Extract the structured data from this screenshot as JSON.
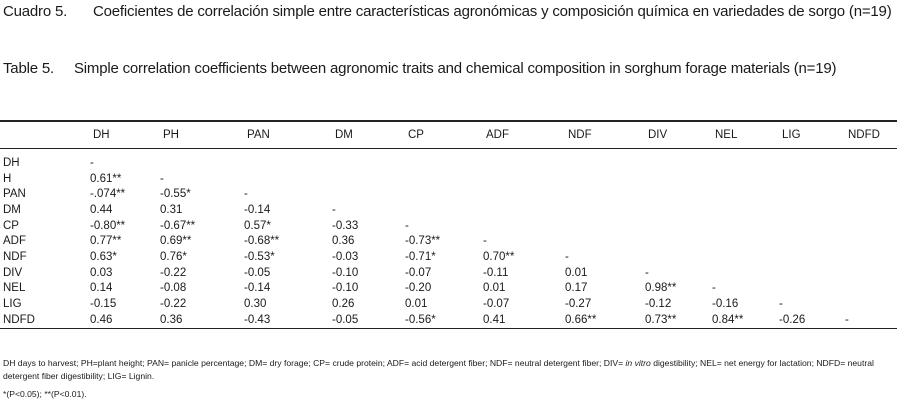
{
  "caption_es": {
    "label": "Cuadro 5.",
    "text": "Coeficientes de correlación simple entre características agronómicas y composición química en variedades de sorgo (n=19)"
  },
  "caption_en": {
    "label": "Table 5.",
    "text": "Simple correlation coefficients between agronomic traits and chemical composition in sorghum forage materials (n=19)"
  },
  "table": {
    "columns": [
      "DH",
      "PH",
      "PAN",
      "DM",
      "CP",
      "ADF",
      "NDF",
      "DIV",
      "NEL",
      "LIG",
      "NDFD"
    ],
    "rows": [
      {
        "label": "DH",
        "cells": [
          "-"
        ]
      },
      {
        "label": "H",
        "cells": [
          "0.61**",
          "-"
        ]
      },
      {
        "label": "PAN",
        "cells": [
          "-.074**",
          "-0.55*",
          "-"
        ]
      },
      {
        "label": "DM",
        "cells": [
          "0.44",
          "0.31",
          "-0.14",
          "-"
        ]
      },
      {
        "label": "CP",
        "cells": [
          "-0.80**",
          "-0.67**",
          "0.57*",
          "-0.33",
          "-"
        ]
      },
      {
        "label": "ADF",
        "cells": [
          "0.77**",
          "0.69**",
          "-0.68**",
          "0.36",
          "-0.73**",
          "-"
        ]
      },
      {
        "label": "NDF",
        "cells": [
          "0.63*",
          "0.76*",
          "-0.53*",
          "-0.03",
          "-0.71*",
          "0.70**",
          "-"
        ]
      },
      {
        "label": "DIV",
        "cells": [
          "0.03",
          "-0.22",
          "-0.05",
          "-0.10",
          "-0.07",
          "-0.11",
          "0.01",
          "-"
        ]
      },
      {
        "label": "NEL",
        "cells": [
          "0.14",
          "-0.08",
          "-0.14",
          "-0.10",
          "-0.20",
          "0.01",
          "0.17",
          "0.98**",
          "-"
        ]
      },
      {
        "label": "LIG",
        "cells": [
          "-0.15",
          "-0.22",
          "0.30",
          "0.26",
          "0.01",
          "-0.07",
          "-0.27",
          "-0.12",
          "-0.16",
          "-"
        ]
      },
      {
        "label": "NDFD",
        "cells": [
          "0.46",
          "0.36",
          "-0.43",
          "-0.05",
          "-0.56*",
          "0.41",
          "0.66**",
          "0.73**",
          "0.84**",
          "-0.26",
          "-"
        ]
      }
    ]
  },
  "footnote": {
    "before": "DH days to harvest; PH=plant height; PAN= panicle percentage; DM= dry forage; CP= crude protein; ADF= acid detergent fiber; NDF= neutral detergent fiber; DIV=",
    "italic": "in vitro",
    "after": "digestibility; NEL= net energy for lactation; NDFD= neutral detergent fiber digestibility; LIG= Lignin.",
    "significance": "*(P<0.05);  **(P<0.01)."
  }
}
